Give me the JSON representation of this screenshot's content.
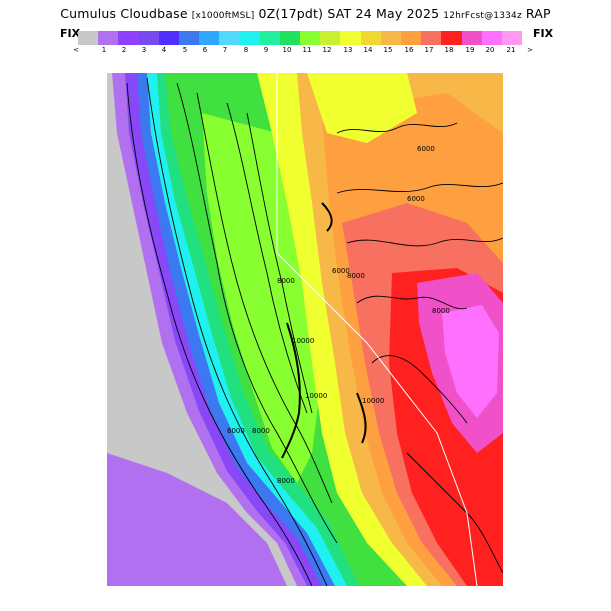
{
  "header": {
    "main": "Cumulus Cloudbase",
    "units": "[x1000ftMSL]",
    "valid": "0Z(17pdt) SAT 24 May 2025",
    "forecast": "12hrFcst@1334z",
    "model": "RAP"
  },
  "fix_left": "FIX",
  "fix_right": "FIX",
  "colorbar": {
    "colors": [
      "#c8c8c8",
      "#b070f0",
      "#9040ff",
      "#7848f0",
      "#5030ff",
      "#3c78f0",
      "#30a8ff",
      "#50d8ff",
      "#20f0f0",
      "#20f0a0",
      "#20e060",
      "#88ff30",
      "#c8f030",
      "#f0ff30",
      "#f0d830",
      "#f8b848",
      "#ffa040",
      "#f87060",
      "#ff2020",
      "#f050c8",
      "#ff70ff",
      "#ff98f0"
    ],
    "ticks": [
      "<",
      "1",
      "2",
      "3",
      "4",
      "5",
      "6",
      "7",
      "8",
      "9",
      "10",
      "11",
      "12",
      "13",
      "14",
      "15",
      "16",
      "17",
      "18",
      "19",
      "20",
      "21",
      ">"
    ]
  },
  "map": {
    "contour_labels": [
      "6000",
      "6000",
      "8000",
      "8000",
      "6000",
      "8000",
      "10000",
      "10000",
      "10000",
      "8000",
      "8000",
      "6000"
    ]
  }
}
